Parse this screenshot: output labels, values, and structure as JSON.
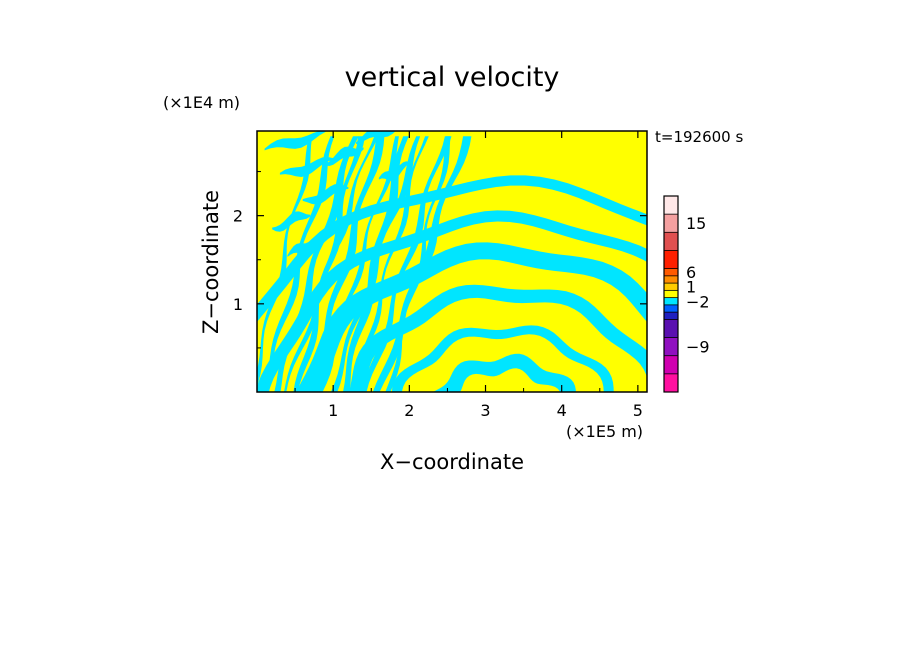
{
  "chart_data": {
    "type": "heatmap",
    "title": "vertical velocity",
    "xlabel": "X−coordinate",
    "ylabel": "Z−coordinate",
    "x_unit": "(×1E5 m)",
    "y_unit": "(×1E4 m)",
    "time_label": "t=192600 s",
    "xlim": [
      0,
      5.12
    ],
    "ylim": [
      0,
      2.96
    ],
    "x_ticks": [
      {
        "v": 1,
        "label": "1"
      },
      {
        "v": 2,
        "label": "2"
      },
      {
        "v": 3,
        "label": "3"
      },
      {
        "v": 4,
        "label": "4"
      },
      {
        "v": 5,
        "label": "5"
      }
    ],
    "y_ticks": [
      {
        "v": 1,
        "label": "1"
      },
      {
        "v": 2,
        "label": "2"
      }
    ],
    "field_colors": {
      "positive": "#ffff00",
      "negative": "#00e5ff"
    },
    "colorbar": {
      "levels": [
        {
          "color": "#ff10a0"
        },
        {
          "color": "#d000b0"
        },
        {
          "color": "#9010c0"
        },
        {
          "color": "#5a10b0"
        },
        {
          "color": "#2020c0"
        },
        {
          "color": "#0060ff"
        },
        {
          "color": "#00e5ff"
        },
        {
          "color": "#ffff00"
        },
        {
          "color": "#ffcc00"
        },
        {
          "color": "#ff8c00"
        },
        {
          "color": "#ff5a00"
        },
        {
          "color": "#ff2000"
        },
        {
          "color": "#e05050"
        },
        {
          "color": "#f4a0a0"
        },
        {
          "color": "#ffe8e8"
        }
      ],
      "tick_labels": [
        "−9",
        "−2",
        "1",
        "6",
        "15"
      ]
    }
  }
}
